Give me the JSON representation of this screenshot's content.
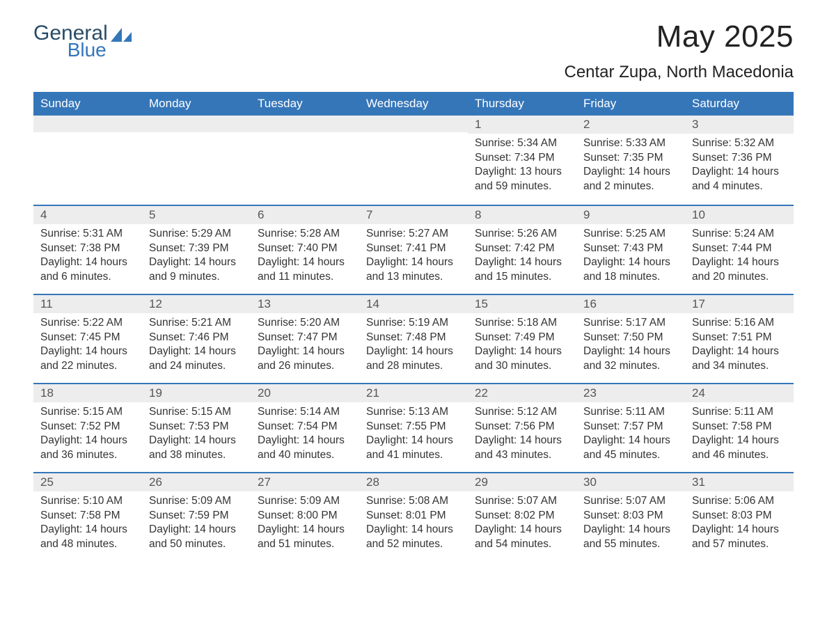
{
  "logo": {
    "general": "General",
    "blue": "Blue",
    "icon_color": "#3576b9"
  },
  "title": "May 2025",
  "location": "Centar Zupa, North Macedonia",
  "header_bg": "#3576b9",
  "header_fg": "#ffffff",
  "daynum_bg": "#ededed",
  "border_color": "#3576b9",
  "day_names": [
    "Sunday",
    "Monday",
    "Tuesday",
    "Wednesday",
    "Thursday",
    "Friday",
    "Saturday"
  ],
  "weeks": [
    [
      {
        "empty": true
      },
      {
        "empty": true
      },
      {
        "empty": true
      },
      {
        "empty": true
      },
      {
        "day": "1",
        "sunrise": "Sunrise: 5:34 AM",
        "sunset": "Sunset: 7:34 PM",
        "daylight": "Daylight: 13 hours and 59 minutes."
      },
      {
        "day": "2",
        "sunrise": "Sunrise: 5:33 AM",
        "sunset": "Sunset: 7:35 PM",
        "daylight": "Daylight: 14 hours and 2 minutes."
      },
      {
        "day": "3",
        "sunrise": "Sunrise: 5:32 AM",
        "sunset": "Sunset: 7:36 PM",
        "daylight": "Daylight: 14 hours and 4 minutes."
      }
    ],
    [
      {
        "day": "4",
        "sunrise": "Sunrise: 5:31 AM",
        "sunset": "Sunset: 7:38 PM",
        "daylight": "Daylight: 14 hours and 6 minutes."
      },
      {
        "day": "5",
        "sunrise": "Sunrise: 5:29 AM",
        "sunset": "Sunset: 7:39 PM",
        "daylight": "Daylight: 14 hours and 9 minutes."
      },
      {
        "day": "6",
        "sunrise": "Sunrise: 5:28 AM",
        "sunset": "Sunset: 7:40 PM",
        "daylight": "Daylight: 14 hours and 11 minutes."
      },
      {
        "day": "7",
        "sunrise": "Sunrise: 5:27 AM",
        "sunset": "Sunset: 7:41 PM",
        "daylight": "Daylight: 14 hours and 13 minutes."
      },
      {
        "day": "8",
        "sunrise": "Sunrise: 5:26 AM",
        "sunset": "Sunset: 7:42 PM",
        "daylight": "Daylight: 14 hours and 15 minutes."
      },
      {
        "day": "9",
        "sunrise": "Sunrise: 5:25 AM",
        "sunset": "Sunset: 7:43 PM",
        "daylight": "Daylight: 14 hours and 18 minutes."
      },
      {
        "day": "10",
        "sunrise": "Sunrise: 5:24 AM",
        "sunset": "Sunset: 7:44 PM",
        "daylight": "Daylight: 14 hours and 20 minutes."
      }
    ],
    [
      {
        "day": "11",
        "sunrise": "Sunrise: 5:22 AM",
        "sunset": "Sunset: 7:45 PM",
        "daylight": "Daylight: 14 hours and 22 minutes."
      },
      {
        "day": "12",
        "sunrise": "Sunrise: 5:21 AM",
        "sunset": "Sunset: 7:46 PM",
        "daylight": "Daylight: 14 hours and 24 minutes."
      },
      {
        "day": "13",
        "sunrise": "Sunrise: 5:20 AM",
        "sunset": "Sunset: 7:47 PM",
        "daylight": "Daylight: 14 hours and 26 minutes."
      },
      {
        "day": "14",
        "sunrise": "Sunrise: 5:19 AM",
        "sunset": "Sunset: 7:48 PM",
        "daylight": "Daylight: 14 hours and 28 minutes."
      },
      {
        "day": "15",
        "sunrise": "Sunrise: 5:18 AM",
        "sunset": "Sunset: 7:49 PM",
        "daylight": "Daylight: 14 hours and 30 minutes."
      },
      {
        "day": "16",
        "sunrise": "Sunrise: 5:17 AM",
        "sunset": "Sunset: 7:50 PM",
        "daylight": "Daylight: 14 hours and 32 minutes."
      },
      {
        "day": "17",
        "sunrise": "Sunrise: 5:16 AM",
        "sunset": "Sunset: 7:51 PM",
        "daylight": "Daylight: 14 hours and 34 minutes."
      }
    ],
    [
      {
        "day": "18",
        "sunrise": "Sunrise: 5:15 AM",
        "sunset": "Sunset: 7:52 PM",
        "daylight": "Daylight: 14 hours and 36 minutes."
      },
      {
        "day": "19",
        "sunrise": "Sunrise: 5:15 AM",
        "sunset": "Sunset: 7:53 PM",
        "daylight": "Daylight: 14 hours and 38 minutes."
      },
      {
        "day": "20",
        "sunrise": "Sunrise: 5:14 AM",
        "sunset": "Sunset: 7:54 PM",
        "daylight": "Daylight: 14 hours and 40 minutes."
      },
      {
        "day": "21",
        "sunrise": "Sunrise: 5:13 AM",
        "sunset": "Sunset: 7:55 PM",
        "daylight": "Daylight: 14 hours and 41 minutes."
      },
      {
        "day": "22",
        "sunrise": "Sunrise: 5:12 AM",
        "sunset": "Sunset: 7:56 PM",
        "daylight": "Daylight: 14 hours and 43 minutes."
      },
      {
        "day": "23",
        "sunrise": "Sunrise: 5:11 AM",
        "sunset": "Sunset: 7:57 PM",
        "daylight": "Daylight: 14 hours and 45 minutes."
      },
      {
        "day": "24",
        "sunrise": "Sunrise: 5:11 AM",
        "sunset": "Sunset: 7:58 PM",
        "daylight": "Daylight: 14 hours and 46 minutes."
      }
    ],
    [
      {
        "day": "25",
        "sunrise": "Sunrise: 5:10 AM",
        "sunset": "Sunset: 7:58 PM",
        "daylight": "Daylight: 14 hours and 48 minutes."
      },
      {
        "day": "26",
        "sunrise": "Sunrise: 5:09 AM",
        "sunset": "Sunset: 7:59 PM",
        "daylight": "Daylight: 14 hours and 50 minutes."
      },
      {
        "day": "27",
        "sunrise": "Sunrise: 5:09 AM",
        "sunset": "Sunset: 8:00 PM",
        "daylight": "Daylight: 14 hours and 51 minutes."
      },
      {
        "day": "28",
        "sunrise": "Sunrise: 5:08 AM",
        "sunset": "Sunset: 8:01 PM",
        "daylight": "Daylight: 14 hours and 52 minutes."
      },
      {
        "day": "29",
        "sunrise": "Sunrise: 5:07 AM",
        "sunset": "Sunset: 8:02 PM",
        "daylight": "Daylight: 14 hours and 54 minutes."
      },
      {
        "day": "30",
        "sunrise": "Sunrise: 5:07 AM",
        "sunset": "Sunset: 8:03 PM",
        "daylight": "Daylight: 14 hours and 55 minutes."
      },
      {
        "day": "31",
        "sunrise": "Sunrise: 5:06 AM",
        "sunset": "Sunset: 8:03 PM",
        "daylight": "Daylight: 14 hours and 57 minutes."
      }
    ]
  ]
}
